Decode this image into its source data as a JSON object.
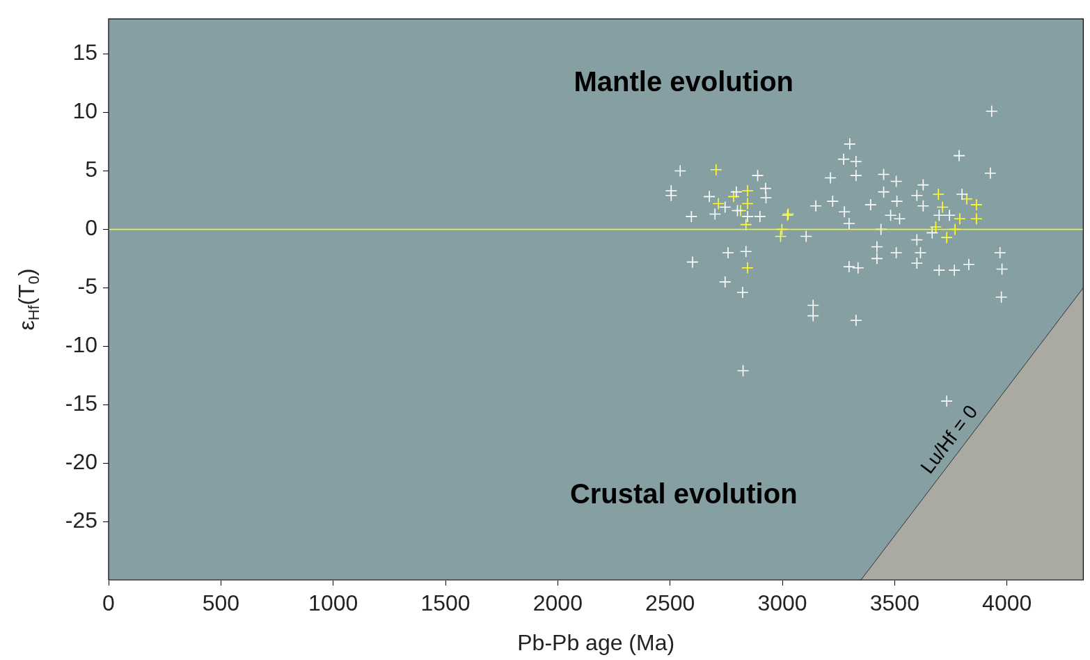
{
  "chart_data": {
    "type": "scatter",
    "xlabel": "Pb-Pb age (Ma)",
    "ylabel": "ε$_{Hf}$(T$_{0}$)",
    "xlim": [
      0,
      4340
    ],
    "ylim": [
      -30,
      18
    ],
    "xticks": [
      0,
      500,
      1000,
      1500,
      2000,
      2500,
      3000,
      3500,
      4000
    ],
    "yticks": [
      -25,
      -20,
      -15,
      -10,
      -5,
      0,
      5,
      10,
      15
    ],
    "grid": false,
    "legend": false,
    "marker": "cross",
    "series": [
      {
        "name": "Lu/Hf = 0",
        "color": "#aaa9a2",
        "type": "area",
        "marker": "none",
        "x": [
          3350,
          4340
        ],
        "values": [
          -30,
          -5
        ]
      },
      {
        "color": "#ffffff",
        "x": [
          2545,
          2505,
          2595,
          2505,
          2600,
          2675,
          2700,
          2745,
          2795,
          2800,
          2758,
          2745,
          2823,
          2825,
          2838,
          2890,
          2925,
          2900,
          2927,
          2845,
          3300,
          3273,
          3328,
          3214,
          3328,
          3451,
          3507,
          3627,
          3787,
          3926,
          3932,
          3224,
          3149,
          3276,
          3297,
          3393,
          3451,
          3510,
          3482,
          3522,
          3439,
          3599,
          3627,
          3106,
          3421,
          3421,
          3507,
          3599,
          3615,
          3599,
          3297,
          3337,
          3137,
          3137,
          3328,
          3698,
          3766,
          3830,
          3698,
          3744,
          3800,
          3667,
          3969,
          3978,
          3975,
          3732
        ],
        "values": [
          5.0,
          3.3,
          1.1,
          2.9,
          -2.8,
          2.8,
          1.3,
          1.9,
          3.2,
          1.6,
          -2.0,
          -4.5,
          -5.4,
          -12.1,
          -1.9,
          4.6,
          3.5,
          1.1,
          2.7,
          1.1,
          7.3,
          6.0,
          5.8,
          4.4,
          4.6,
          4.7,
          4.1,
          3.8,
          6.3,
          4.8,
          10.1,
          2.4,
          2.0,
          1.5,
          0.5,
          2.1,
          3.2,
          2.4,
          1.2,
          0.9,
          0.0,
          2.9,
          2.0,
          -0.6,
          -1.5,
          -2.5,
          -2.0,
          -0.9,
          -2.0,
          -2.9,
          -3.2,
          -3.3,
          -6.5,
          -7.4,
          -7.8,
          -3.5,
          -3.5,
          -3.0,
          1.2,
          1.2,
          3.0,
          -0.3,
          -2.0,
          -3.4,
          -5.8,
          -14.7
        ]
      },
      {
        "color": "#ffff33",
        "x": [
          2705,
          2845,
          2845,
          2814,
          2838,
          2845,
          3023,
          2998,
          2992,
          2715,
          2783,
          3026,
          3695,
          3713,
          3821,
          3864,
          3864,
          3790,
          3769,
          3732,
          3683
        ],
        "values": [
          5.1,
          3.3,
          2.2,
          1.6,
          0.4,
          -3.3,
          1.2,
          0.0,
          -0.6,
          2.2,
          2.8,
          1.3,
          3.0,
          1.9,
          2.6,
          2.1,
          0.9,
          0.9,
          0.0,
          -0.7,
          0.2
        ]
      }
    ],
    "ref_lines": [
      {
        "axis": "y",
        "value": 0,
        "color": "#ffff00"
      }
    ],
    "annotations": [
      "Mantle evolution",
      "Crustal evolution"
    ]
  }
}
